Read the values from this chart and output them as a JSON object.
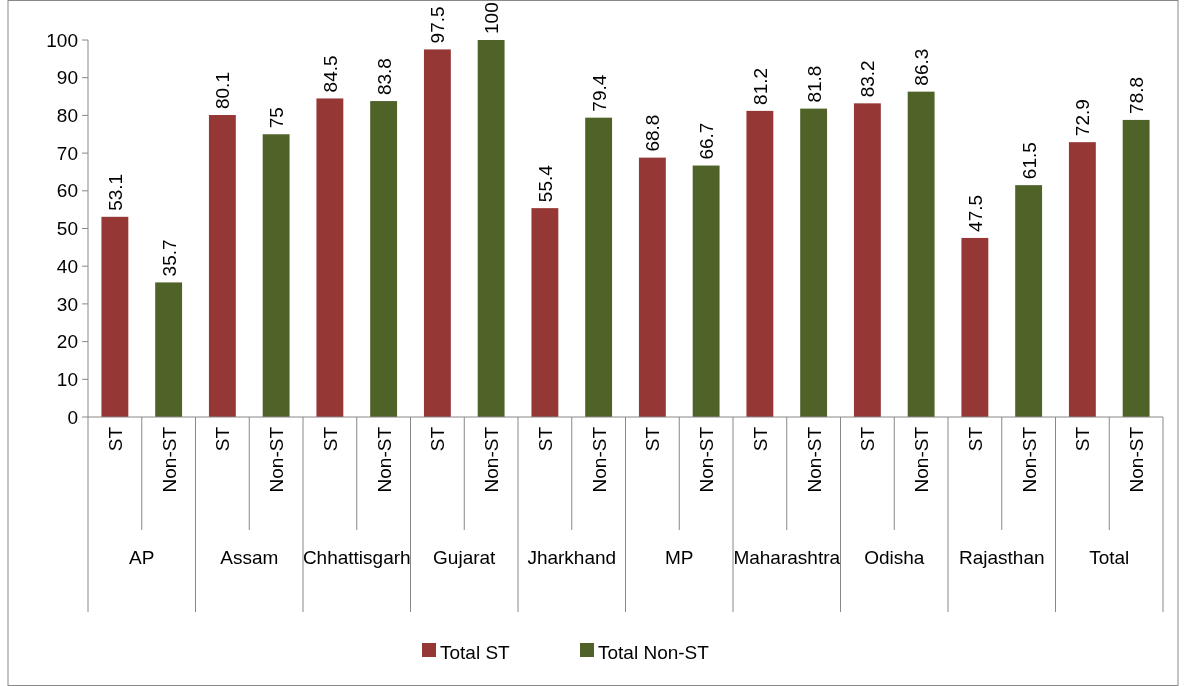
{
  "chart_data": {
    "type": "bar",
    "categories": [
      "ST",
      "Non-ST",
      "ST",
      "Non-ST",
      "ST",
      "Non-ST",
      "ST",
      "Non-ST",
      "ST",
      "Non-ST",
      "ST",
      "Non-ST",
      "ST",
      "Non-ST",
      "ST",
      "Non-ST",
      "ST",
      "Non-ST",
      "ST",
      "Non-ST"
    ],
    "series": [
      {
        "name": "Total ST",
        "color": "#953735",
        "values": [
          53.1,
          null,
          80.1,
          null,
          84.5,
          null,
          97.5,
          null,
          55.4,
          null,
          68.8,
          null,
          81.2,
          null,
          83.2,
          null,
          47.5,
          null,
          72.9,
          null
        ]
      },
      {
        "name": "Total Non-ST",
        "color": "#4f6228",
        "values": [
          null,
          35.7,
          null,
          75,
          null,
          83.8,
          null,
          100,
          null,
          79.4,
          null,
          66.7,
          null,
          81.8,
          null,
          86.3,
          null,
          61.5,
          null,
          78.8
        ]
      }
    ],
    "annotations": [
      "AP",
      "Assam",
      "Chhattisgarh",
      "Gujarat",
      "Jharkhand",
      "MP",
      "Maharashtra",
      "Odisha",
      "Rajasthan",
      "Total"
    ],
    "ylim": [
      0,
      100
    ],
    "yticks": [
      0,
      10,
      20,
      30,
      40,
      50,
      60,
      70,
      80,
      90,
      100
    ],
    "grid": false,
    "legend": "bottom",
    "data_labels": true
  }
}
